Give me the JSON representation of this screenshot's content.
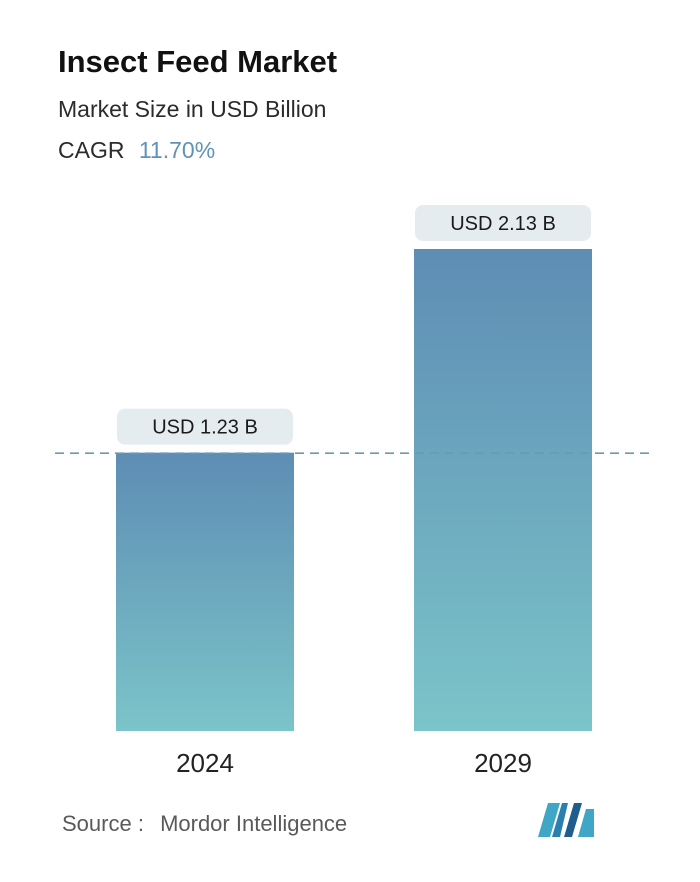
{
  "header": {
    "title": "Insect Feed Market",
    "subtitle": "Market Size in USD Billion",
    "cagr_label": "CAGR",
    "cagr_value": "11.70%"
  },
  "colors": {
    "bar_top": "#5e8db4",
    "bar_bottom": "#7bc4c9",
    "label_bg": "#e4ecef",
    "dashed_line": "#6f97b5",
    "accent": "#5f93b8"
  },
  "chart_data": {
    "type": "bar",
    "categories": [
      "2024",
      "2029"
    ],
    "values": [
      1.23,
      2.13
    ],
    "data_labels": [
      "USD 1.23 B",
      "USD 2.13 B"
    ],
    "title": "Insect Feed Market",
    "subtitle": "Market Size in USD Billion",
    "xlabel": "",
    "ylabel": "",
    "ylim": [
      0,
      2.13
    ],
    "reference_line": 1.23,
    "grid": false,
    "legend": "none"
  },
  "footer": {
    "source_label": "Source :",
    "source_value": "Mordor Intelligence",
    "logo_icon": "mordor-intelligence-logo-icon"
  }
}
